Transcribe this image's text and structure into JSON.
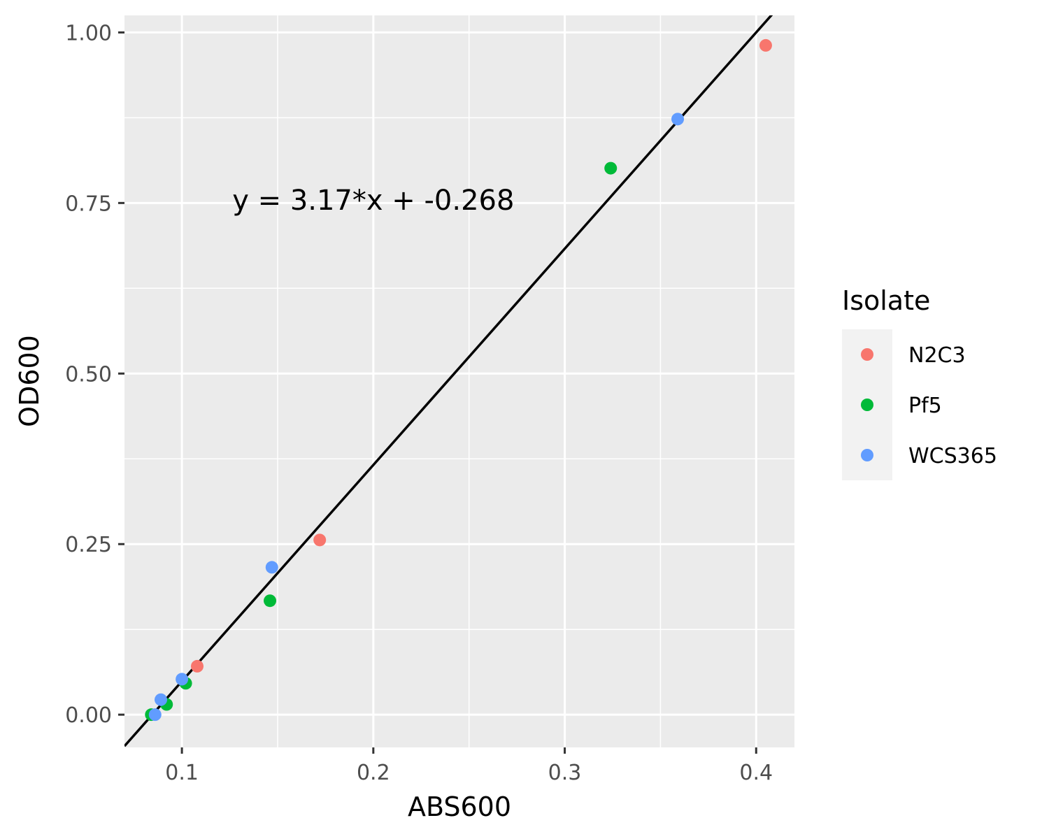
{
  "chart_data": {
    "type": "scatter",
    "xlabel": "ABS600",
    "ylabel": "OD600",
    "xlim": [
      0.07,
      0.42
    ],
    "ylim": [
      -0.048,
      1.025
    ],
    "x_ticks": [
      0.1,
      0.2,
      0.3,
      0.4
    ],
    "x_tick_labels": [
      "0.1",
      "0.2",
      "0.3",
      "0.4"
    ],
    "y_ticks": [
      0.0,
      0.25,
      0.5,
      0.75,
      1.0
    ],
    "y_tick_labels": [
      "0.00",
      "0.25",
      "0.50",
      "0.75",
      "1.00"
    ],
    "grid": true,
    "legend": {
      "title": "Isolate",
      "position": "right"
    },
    "series": [
      {
        "name": "N2C3",
        "color": "#F8766D",
        "points": [
          [
            0.405,
            0.981
          ],
          [
            0.172,
            0.256
          ],
          [
            0.108,
            0.071
          ]
        ]
      },
      {
        "name": "Pf5",
        "color": "#00BA38",
        "points": [
          [
            0.324,
            0.801
          ],
          [
            0.146,
            0.167
          ],
          [
            0.102,
            0.046
          ],
          [
            0.092,
            0.015
          ],
          [
            0.084,
            0.0
          ]
        ]
      },
      {
        "name": "WCS365",
        "color": "#619CFF",
        "points": [
          [
            0.359,
            0.873
          ],
          [
            0.147,
            0.216
          ],
          [
            0.1,
            0.052
          ],
          [
            0.089,
            0.022
          ],
          [
            0.086,
            0.0
          ]
        ]
      }
    ],
    "fit_line": {
      "slope": 3.17,
      "intercept": -0.268,
      "color": "#000000"
    },
    "annotation": {
      "text": "y = 3.17*x + -0.268",
      "x": 0.2,
      "y": 0.74
    }
  }
}
